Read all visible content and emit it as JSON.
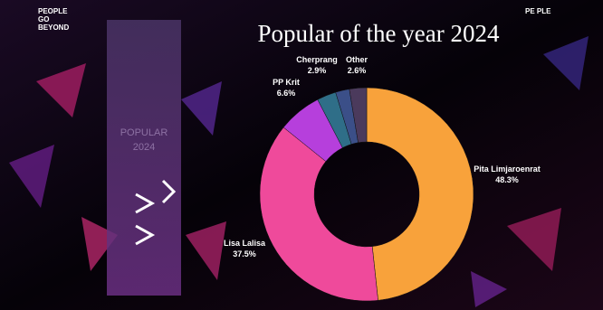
{
  "brand_left": [
    "PEOPLE",
    "GO",
    "BEYOND"
  ],
  "brand_right": "PE PLE",
  "trophy": [
    "POPULAR",
    "2024"
  ],
  "chart_data": {
    "type": "donut",
    "title": "Popular of the year 2024",
    "categories": [
      "Pita Limjaroenrat",
      "Lisa Lalisa",
      "PP Krit",
      "Cherprang",
      null,
      "Other"
    ],
    "values": [
      48.3,
      37.5,
      6.6,
      2.9,
      2.1,
      2.6
    ],
    "value_labels": [
      "48.3%",
      "37.5%",
      "6.6%",
      "2.9%",
      null,
      "2.6%"
    ],
    "colors": [
      "#f8a23b",
      "#ef4a9b",
      "#b63fdc",
      "#2f6e88",
      "#3b4f88",
      "#4b3a5c"
    ]
  }
}
